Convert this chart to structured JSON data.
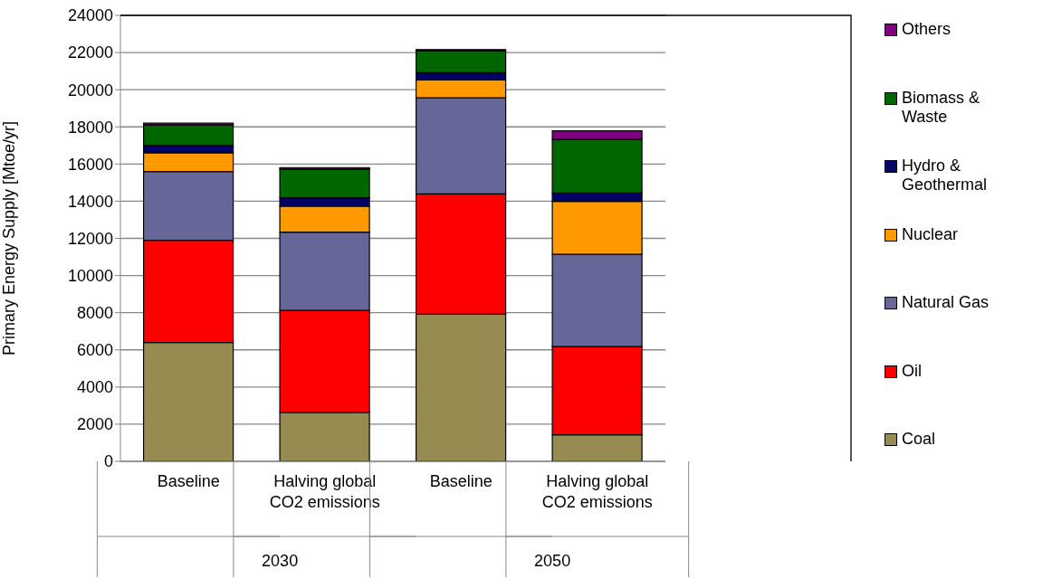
{
  "chart_data": {
    "type": "bar",
    "stacked": true,
    "ylabel": "Primary Energy Supply [Mtoe/yr]",
    "categories": [
      "Baseline",
      "Halving global CO2 emissions",
      "Baseline",
      "Halving global CO2 emissions"
    ],
    "annotations": [
      "2030",
      "2050"
    ],
    "series": [
      {
        "name": "Coal",
        "color": "#968c52",
        "values": [
          6400,
          2630,
          7920,
          1430
        ]
      },
      {
        "name": "Oil",
        "color": "#ff0000",
        "values": [
          5500,
          5500,
          6470,
          4750
        ]
      },
      {
        "name": "Natural Gas",
        "color": "#666699",
        "values": [
          3700,
          4200,
          5170,
          4960
        ]
      },
      {
        "name": "Nuclear",
        "color": "#ff9900",
        "values": [
          1000,
          1400,
          980,
          2850
        ]
      },
      {
        "name": "Hydro & Geothermal",
        "color": "#000066",
        "values": [
          400,
          450,
          380,
          450
        ]
      },
      {
        "name": "Biomass & Waste",
        "color": "#006600",
        "values": [
          1100,
          1550,
          1190,
          2900
        ]
      },
      {
        "name": "Others",
        "color": "#800080",
        "values": [
          100,
          80,
          50,
          450
        ]
      }
    ],
    "ylim": [
      0,
      24000
    ],
    "yticks": [
      0,
      2000,
      4000,
      6000,
      8000,
      10000,
      12000,
      14000,
      16000,
      18000,
      20000,
      22000,
      24000
    ],
    "grid": "y",
    "legend": "right"
  }
}
